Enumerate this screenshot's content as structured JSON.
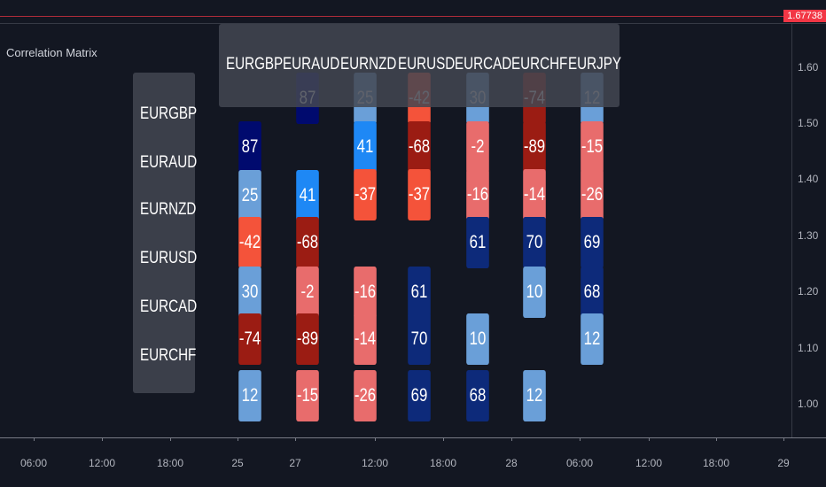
{
  "top_strip": {
    "price_badge": "1.67738"
  },
  "indicator_title": "Correlation Matrix",
  "colors": {
    "background": "#131722",
    "dark_navy": "#000a6e",
    "navy": "#0d2a7a",
    "bright_blue": "#1e88f5",
    "light_blue": "#6a9fd8",
    "dark_red": "#9b1c13",
    "orange_red": "#f4533a",
    "pink_red": "#e86c6c",
    "panel_gray": "#434651"
  },
  "matrix": {
    "column_headers": [
      "EURGBP",
      "EURAUD",
      "EURNZD",
      "EURUSD",
      "EURCAD",
      "EURCHF",
      "EURJPY"
    ],
    "row_headers": [
      "EURGBP",
      "EURAUD",
      "EURNZD",
      "EURUSD",
      "EURCAD",
      "EURCHF"
    ],
    "tiles": [
      {
        "col": 0,
        "label": "87",
        "color": "dark_navy"
      },
      {
        "col": 0,
        "label": "25",
        "color": "light_blue"
      },
      {
        "col": 0,
        "label": "-42",
        "color": "orange_red"
      },
      {
        "col": 0,
        "label": "30",
        "color": "light_blue"
      },
      {
        "col": 0,
        "label": "-74",
        "color": "dark_red"
      },
      {
        "col": 0,
        "label": "12",
        "color": "light_blue"
      },
      {
        "col": 1,
        "label": "87",
        "color": "dark_navy"
      },
      {
        "col": 1,
        "label": "41",
        "color": "bright_blue"
      },
      {
        "col": 1,
        "label": "-68",
        "color": "dark_red"
      },
      {
        "col": 1,
        "label": "-2",
        "color": "pink_red"
      },
      {
        "col": 1,
        "label": "-89",
        "color": "dark_red"
      },
      {
        "col": 1,
        "label": "-15",
        "color": "pink_red"
      },
      {
        "col": 2,
        "label": "25",
        "color": "light_blue"
      },
      {
        "col": 2,
        "label": "41",
        "color": "bright_blue"
      },
      {
        "col": 2,
        "label": "-37",
        "color": "orange_red"
      },
      {
        "col": 2,
        "label": "-16",
        "color": "pink_red"
      },
      {
        "col": 2,
        "label": "-14",
        "color": "pink_red"
      },
      {
        "col": 2,
        "label": "-26",
        "color": "pink_red"
      },
      {
        "col": 3,
        "label": "-42",
        "color": "orange_red"
      },
      {
        "col": 3,
        "label": "-68",
        "color": "dark_red"
      },
      {
        "col": 3,
        "label": "-37",
        "color": "orange_red"
      },
      {
        "col": 3,
        "label": "61",
        "color": "navy"
      },
      {
        "col": 3,
        "label": "70",
        "color": "navy"
      },
      {
        "col": 3,
        "label": "69",
        "color": "navy"
      },
      {
        "col": 4,
        "label": "30",
        "color": "light_blue"
      },
      {
        "col": 4,
        "label": "-2",
        "color": "pink_red"
      },
      {
        "col": 4,
        "label": "-16",
        "color": "pink_red"
      },
      {
        "col": 4,
        "label": "61",
        "color": "navy"
      },
      {
        "col": 4,
        "label": "10",
        "color": "light_blue"
      },
      {
        "col": 4,
        "label": "68",
        "color": "navy"
      },
      {
        "col": 5,
        "label": "-74",
        "color": "dark_red"
      },
      {
        "col": 5,
        "label": "-89",
        "color": "dark_red"
      },
      {
        "col": 5,
        "label": "-14",
        "color": "pink_red"
      },
      {
        "col": 5,
        "label": "70",
        "color": "navy"
      },
      {
        "col": 5,
        "label": "10",
        "color": "light_blue"
      },
      {
        "col": 5,
        "label": "12",
        "color": "light_blue"
      },
      {
        "col": 6,
        "label": "12",
        "color": "light_blue"
      },
      {
        "col": 6,
        "label": "-15",
        "color": "pink_red"
      },
      {
        "col": 6,
        "label": "-26",
        "color": "pink_red"
      },
      {
        "col": 6,
        "label": "69",
        "color": "navy"
      },
      {
        "col": 6,
        "label": "68",
        "color": "navy"
      },
      {
        "col": 6,
        "label": "12",
        "color": "light_blue"
      }
    ]
  },
  "price_axis": {
    "ticks": [
      "1.60",
      "1.50",
      "1.40",
      "1.30",
      "1.20",
      "1.10",
      "1.00"
    ]
  },
  "time_axis": {
    "ticks": [
      "06:00",
      "12:00",
      "18:00",
      "25",
      "27",
      "12:00",
      "18:00",
      "28",
      "06:00",
      "12:00",
      "18:00",
      "29"
    ]
  }
}
